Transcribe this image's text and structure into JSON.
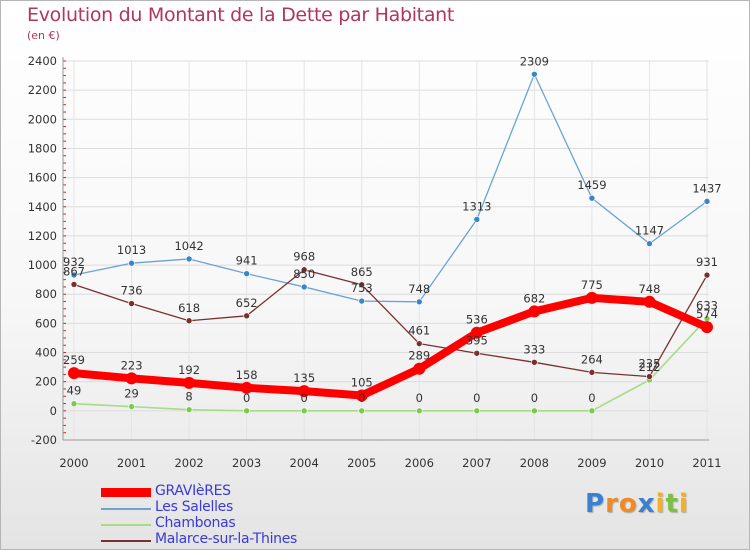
{
  "title": "Evolution du Montant de la Dette par Habitant",
  "unit_label": "(en €)",
  "brand": {
    "text": "Proxiti",
    "letters": [
      {
        "ch": "P",
        "color": "#3a7fd0"
      },
      {
        "ch": "r",
        "color": "#f08a24"
      },
      {
        "ch": "o",
        "color": "#f08a24"
      },
      {
        "ch": "x",
        "color": "#3a7fd0"
      },
      {
        "ch": "i",
        "color": "#f5b01f"
      },
      {
        "ch": "t",
        "color": "#7ac043"
      },
      {
        "ch": "i",
        "color": "#f5b01f"
      }
    ]
  },
  "chart_data": {
    "type": "line",
    "title": "Evolution du Montant de la Dette par Habitant",
    "ylabel": "(en €)",
    "xlabel": "",
    "x": [
      "2000",
      "2001",
      "2002",
      "2003",
      "2004",
      "2005",
      "2006",
      "2007",
      "2008",
      "2009",
      "2010",
      "2011"
    ],
    "ylim": [
      -200,
      2400
    ],
    "yticks": [
      -200,
      0,
      200,
      400,
      600,
      800,
      1000,
      1200,
      1400,
      1600,
      1800,
      2000,
      2200,
      2400
    ],
    "legend_position": "bottom-left",
    "series": [
      {
        "name": "Les Salelles",
        "color": "#6ca2d4",
        "marker_color": "#3a86c8",
        "width": 1.3,
        "values": [
          932,
          1013,
          1042,
          941,
          850,
          753,
          748,
          1313,
          2309,
          1459,
          1147,
          1437
        ],
        "labels": [
          "932",
          "1013",
          "1042",
          "941",
          "850",
          "753",
          "748",
          "1313",
          "2309",
          "1459",
          "1147",
          "1437"
        ]
      },
      {
        "name": "Chambonas",
        "color": "#a6dc86",
        "marker_color": "#7dc94d",
        "width": 1.6,
        "values": [
          49,
          29,
          8,
          0,
          0,
          0,
          0,
          0,
          0,
          0,
          212,
          633
        ],
        "labels": [
          "49",
          "29",
          "8",
          "0",
          "0",
          "0",
          "0",
          "0",
          "0",
          "0",
          "212",
          "633"
        ]
      },
      {
        "name": "Malarce-sur-la-Thines",
        "color": "#7a3030",
        "marker_color": "#7a3030",
        "width": 1.3,
        "values": [
          867,
          736,
          618,
          652,
          968,
          865,
          461,
          395,
          333,
          264,
          235,
          931
        ],
        "labels": [
          "867",
          "736",
          "618",
          "652",
          "968",
          "865",
          "461",
          "395",
          "333",
          "264",
          "235",
          "931"
        ]
      },
      {
        "name": "GRAVIèRES",
        "color": "#ff0000",
        "marker_color": "#ff0000",
        "width": 8,
        "values": [
          259,
          223,
          192,
          158,
          135,
          105,
          289,
          536,
          682,
          775,
          748,
          574
        ],
        "labels": [
          "259",
          "223",
          "192",
          "158",
          "135",
          "105",
          "289",
          "536",
          "682",
          "775",
          "748",
          "574"
        ]
      }
    ]
  },
  "legend": [
    {
      "label": "GRAVIèRES",
      "color": "#ff0000"
    },
    {
      "label": "Les Salelles",
      "color": "#6ca2d4"
    },
    {
      "label": "Chambonas",
      "color": "#a6dc86"
    },
    {
      "label": "Malarce-sur-la-Thines",
      "color": "#7a3030"
    }
  ]
}
